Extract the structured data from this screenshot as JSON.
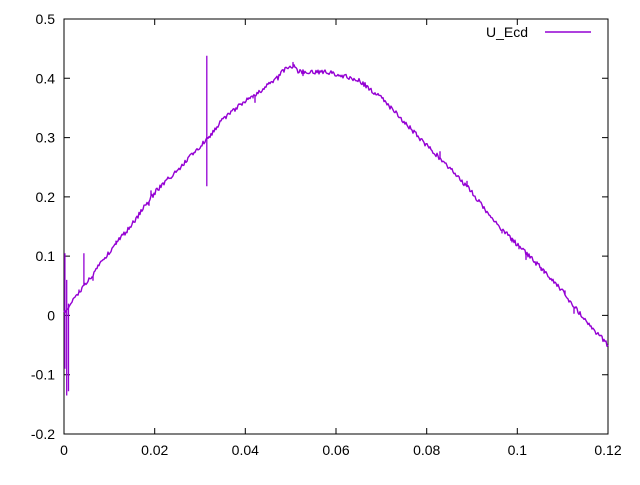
{
  "window": {
    "background": "#ffffff"
  },
  "chart_data": {
    "type": "line",
    "title": "",
    "xlabel": "",
    "ylabel": "",
    "grid": false,
    "background": "#ffffff",
    "border_color": "#000000",
    "text_color": "#000000",
    "xlim": [
      0,
      0.12
    ],
    "ylim": [
      -0.2,
      0.5
    ],
    "x_ticks": [
      0,
      0.02,
      0.04,
      0.06,
      0.08,
      0.1,
      0.12
    ],
    "x_tick_labels": [
      "0",
      "0.02",
      "0.04",
      "0.06",
      "0.08",
      "0.1",
      "0.12"
    ],
    "y_ticks": [
      -0.2,
      -0.1,
      0,
      0.1,
      0.2,
      0.3,
      0.4,
      0.5
    ],
    "y_tick_labels": [
      "-0.2",
      "-0.1",
      "0",
      "0.1",
      "0.2",
      "0.3",
      "0.4",
      "0.5"
    ],
    "legend_position": "top-right-inside",
    "series": [
      {
        "name": "U_Ecd",
        "color": "#9400d3",
        "style": "noisy-line",
        "noise_amplitude": 0.004,
        "hair_probability": 0.05,
        "hair_max": 0.011,
        "points": [
          [
            0.0,
            0.005
          ],
          [
            0.0025,
            0.03
          ],
          [
            0.005,
            0.055
          ],
          [
            0.01,
            0.107
          ],
          [
            0.015,
            0.154
          ],
          [
            0.02,
            0.207
          ],
          [
            0.025,
            0.245
          ],
          [
            0.03,
            0.285
          ],
          [
            0.0315,
            0.296
          ],
          [
            0.035,
            0.33
          ],
          [
            0.04,
            0.362
          ],
          [
            0.045,
            0.388
          ],
          [
            0.0475,
            0.403
          ],
          [
            0.048,
            0.41
          ],
          [
            0.0495,
            0.419
          ],
          [
            0.051,
            0.419
          ],
          [
            0.0515,
            0.411
          ],
          [
            0.055,
            0.411
          ],
          [
            0.058,
            0.41
          ],
          [
            0.06,
            0.407
          ],
          [
            0.065,
            0.397
          ],
          [
            0.07,
            0.367
          ],
          [
            0.075,
            0.327
          ],
          [
            0.08,
            0.287
          ],
          [
            0.085,
            0.25
          ],
          [
            0.09,
            0.208
          ],
          [
            0.095,
            0.158
          ],
          [
            0.1,
            0.119
          ],
          [
            0.105,
            0.082
          ],
          [
            0.11,
            0.04
          ],
          [
            0.115,
            -0.008
          ],
          [
            0.12,
            -0.05
          ]
        ],
        "spikes": [
          {
            "x": 0.0002,
            "y1": -0.09,
            "y2": 0.105
          },
          {
            "x": 0.0006,
            "y1": -0.135,
            "y2": 0.06
          },
          {
            "x": 0.001,
            "y1": -0.128,
            "y2": 0.02
          },
          {
            "x": 0.0044,
            "y1": 0.05,
            "y2": 0.105
          },
          {
            "x": 0.0315,
            "y1": 0.218,
            "y2": 0.438
          }
        ]
      }
    ]
  }
}
